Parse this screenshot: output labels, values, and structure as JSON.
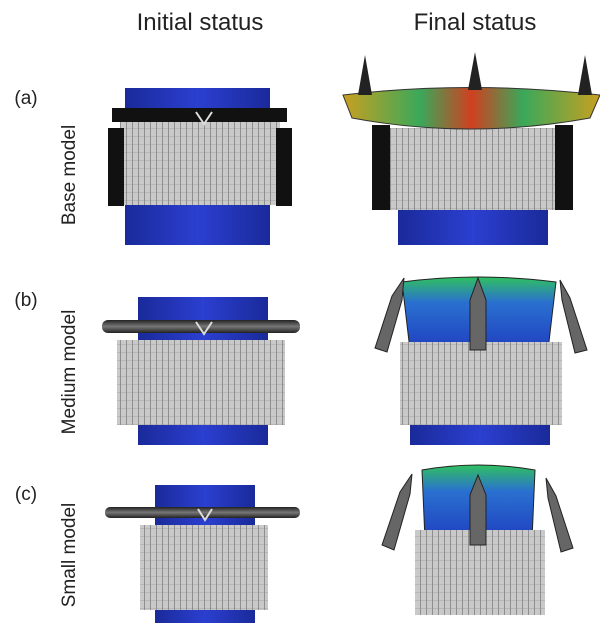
{
  "header": {
    "columns": [
      "Initial status",
      "Final status"
    ]
  },
  "rows": [
    {
      "letter": "(a)",
      "label": "Base model"
    },
    {
      "letter": "(b)",
      "label": "Medium model"
    },
    {
      "letter": "(c)",
      "label": "Small model"
    }
  ]
}
